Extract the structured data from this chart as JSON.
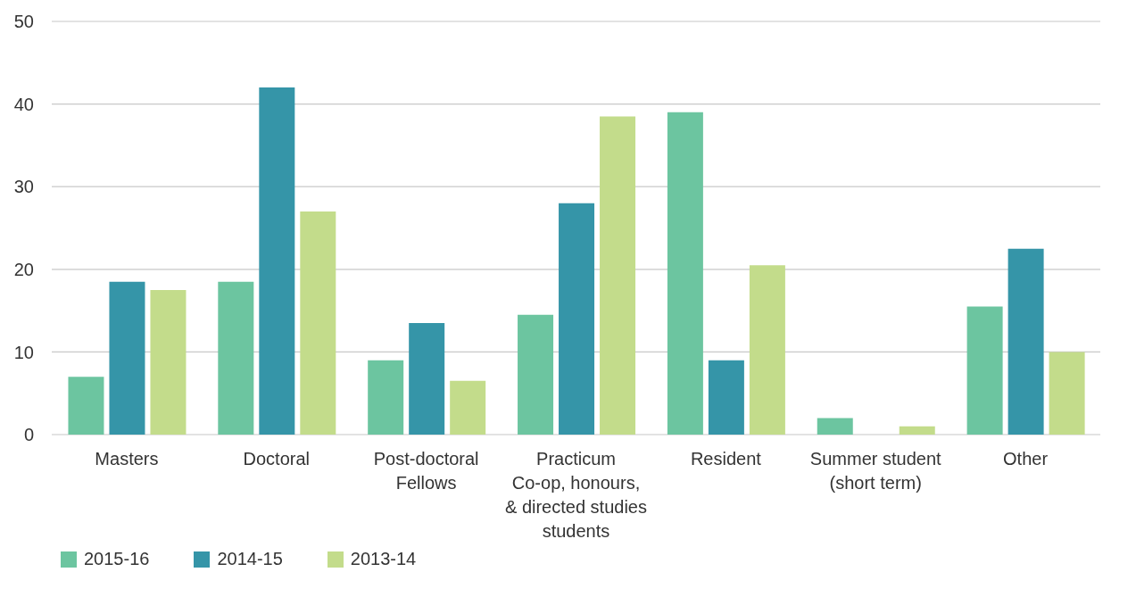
{
  "chart_data": {
    "type": "bar",
    "categories": [
      "Masters",
      "Doctoral",
      "Post-doctoral\nFellows",
      "Practicum\nCo-op, honours,\n& directed studies\nstudents",
      "Resident",
      "Summer student\n(short term)",
      "Other"
    ],
    "series": [
      {
        "name": "2015-16",
        "color": "#6cc5a0",
        "values": [
          7,
          18.5,
          9,
          14.5,
          39,
          2,
          15.5
        ]
      },
      {
        "name": "2014-15",
        "color": "#3595a8",
        "values": [
          18.5,
          42,
          13.5,
          28,
          9,
          0,
          22.5
        ]
      },
      {
        "name": "2013-14",
        "color": "#c3dc8b",
        "values": [
          17.5,
          27,
          6.5,
          38.5,
          20.5,
          1,
          10
        ]
      }
    ],
    "ylim": [
      0,
      50
    ],
    "yticks": [
      0,
      10,
      20,
      30,
      40,
      50
    ],
    "grid": "y",
    "legend": "bottom left"
  }
}
